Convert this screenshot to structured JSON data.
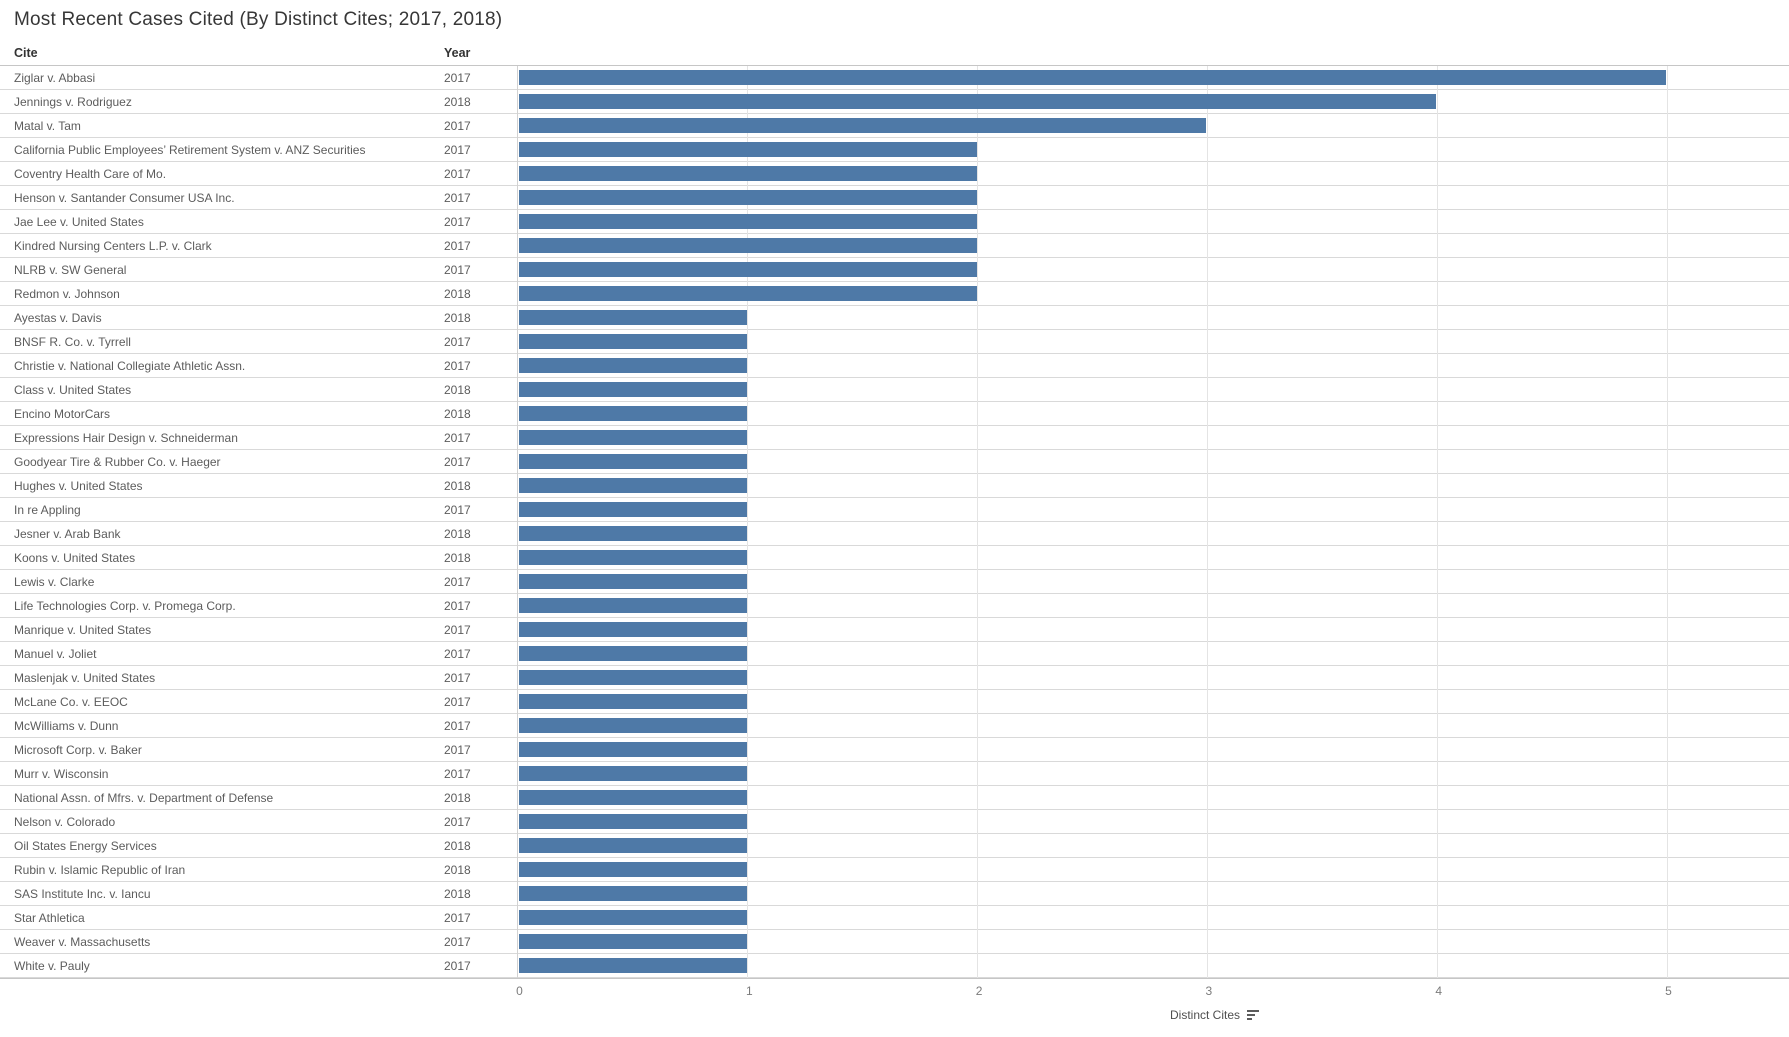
{
  "title": "Most Recent Cases Cited (By Distinct Cites; 2017, 2018)",
  "columns": {
    "cite": "Cite",
    "year": "Year"
  },
  "axis": {
    "label": "Distinct Cites",
    "ticks": [
      "0",
      "1",
      "2",
      "3",
      "4",
      "5"
    ]
  },
  "colors": {
    "bar": "#4e79a7",
    "row_line": "#d9d9d9",
    "grid_line": "#e4e4e4",
    "axis_text": "#7b7b7b",
    "label_text": "#5c5c5c",
    "title_text": "#373737"
  },
  "icons": {
    "sort": "sort-descending-icon"
  },
  "chart_data": {
    "type": "bar",
    "orientation": "horizontal",
    "title": "Most Recent Cases Cited (By Distinct Cites; 2017, 2018)",
    "xlabel": "Distinct Cites",
    "ylabel": "Cite / Year",
    "xlim": [
      0,
      5.5
    ],
    "x_ticks": [
      0,
      1,
      2,
      3,
      4,
      5
    ],
    "grid": true,
    "legend": "none",
    "bar_color": "#4e79a7",
    "rows": [
      {
        "cite": "Ziglar v. Abbasi",
        "year": "2017",
        "distinct_cites": 5
      },
      {
        "cite": "Jennings v. Rodriguez",
        "year": "2018",
        "distinct_cites": 4
      },
      {
        "cite": "Matal v. Tam",
        "year": "2017",
        "distinct_cites": 3
      },
      {
        "cite": "California Public Employees’ Retirement System v. ANZ Securities",
        "year": "2017",
        "distinct_cites": 2
      },
      {
        "cite": "Coventry Health Care of Mo.",
        "year": "2017",
        "distinct_cites": 2
      },
      {
        "cite": "Henson v. Santander Consumer USA Inc.",
        "year": "2017",
        "distinct_cites": 2
      },
      {
        "cite": "Jae Lee v. United States",
        "year": "2017",
        "distinct_cites": 2
      },
      {
        "cite": "Kindred Nursing Centers L.P. v. Clark",
        "year": "2017",
        "distinct_cites": 2
      },
      {
        "cite": "NLRB v. SW General",
        "year": "2017",
        "distinct_cites": 2
      },
      {
        "cite": "Redmon v. Johnson",
        "year": "2018",
        "distinct_cites": 2
      },
      {
        "cite": "Ayestas v. Davis",
        "year": "2018",
        "distinct_cites": 1
      },
      {
        "cite": "BNSF R. Co. v. Tyrrell",
        "year": "2017",
        "distinct_cites": 1
      },
      {
        "cite": "Christie v. National Collegiate Athletic Assn.",
        "year": "2017",
        "distinct_cites": 1
      },
      {
        "cite": "Class v. United States",
        "year": "2018",
        "distinct_cites": 1
      },
      {
        "cite": "Encino MotorCars",
        "year": "2018",
        "distinct_cites": 1
      },
      {
        "cite": "Expressions Hair Design v. Schneiderman",
        "year": "2017",
        "distinct_cites": 1
      },
      {
        "cite": "Goodyear Tire & Rubber Co. v. Haeger",
        "year": "2017",
        "distinct_cites": 1
      },
      {
        "cite": "Hughes v. United States",
        "year": "2018",
        "distinct_cites": 1
      },
      {
        "cite": "In re Appling",
        "year": "2017",
        "distinct_cites": 1
      },
      {
        "cite": "Jesner v. Arab Bank",
        "year": "2018",
        "distinct_cites": 1
      },
      {
        "cite": "Koons v. United States",
        "year": "2018",
        "distinct_cites": 1
      },
      {
        "cite": "Lewis v. Clarke",
        "year": "2017",
        "distinct_cites": 1
      },
      {
        "cite": "Life Technologies Corp. v. Promega Corp.",
        "year": "2017",
        "distinct_cites": 1
      },
      {
        "cite": "Manrique v. United States",
        "year": "2017",
        "distinct_cites": 1
      },
      {
        "cite": "Manuel v. Joliet",
        "year": "2017",
        "distinct_cites": 1
      },
      {
        "cite": "Maslenjak v. United States",
        "year": "2017",
        "distinct_cites": 1
      },
      {
        "cite": "McLane Co. v. EEOC",
        "year": "2017",
        "distinct_cites": 1
      },
      {
        "cite": "McWilliams v. Dunn",
        "year": "2017",
        "distinct_cites": 1
      },
      {
        "cite": "Microsoft Corp. v. Baker",
        "year": "2017",
        "distinct_cites": 1
      },
      {
        "cite": "Murr v. Wisconsin",
        "year": "2017",
        "distinct_cites": 1
      },
      {
        "cite": "National Assn. of Mfrs. v. Department of Defense",
        "year": "2018",
        "distinct_cites": 1
      },
      {
        "cite": "Nelson v. Colorado",
        "year": "2017",
        "distinct_cites": 1
      },
      {
        "cite": "Oil States Energy Services",
        "year": "2018",
        "distinct_cites": 1
      },
      {
        "cite": "Rubin v. Islamic Republic of Iran",
        "year": "2018",
        "distinct_cites": 1
      },
      {
        "cite": "SAS Institute Inc. v. Iancu",
        "year": "2018",
        "distinct_cites": 1
      },
      {
        "cite": "Star Athletica",
        "year": "2017",
        "distinct_cites": 1
      },
      {
        "cite": "Weaver v. Massachusetts",
        "year": "2017",
        "distinct_cites": 1
      },
      {
        "cite": "White v. Pauly",
        "year": "2017",
        "distinct_cites": 1
      }
    ]
  }
}
